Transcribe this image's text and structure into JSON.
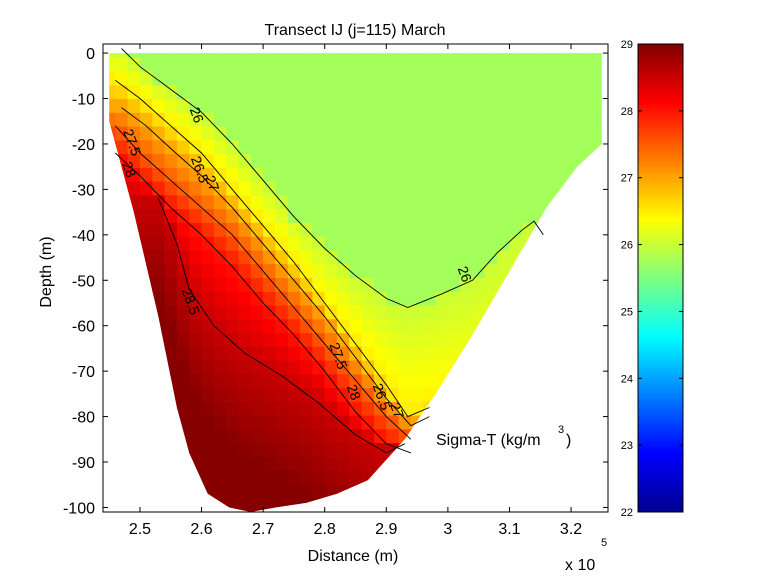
{
  "chart_data": {
    "type": "heatmap",
    "title": "Transect IJ  (j=115)  March",
    "xlabel": "Distance (m)",
    "ylabel": "Depth (m)",
    "x_multiplier_label": "x 10",
    "x_multiplier_exp": "5",
    "annotation": "Sigma-T (kg/m",
    "annotation_sup": "3",
    "annotation_tail": ")",
    "xlim": [
      2.44,
      3.26
    ],
    "ylim": [
      -101,
      2
    ],
    "xticks": [
      "2.5",
      "2.6",
      "2.7",
      "2.8",
      "2.9",
      "3",
      "3.1",
      "3.2"
    ],
    "xtick_values": [
      2.5,
      2.6,
      2.7,
      2.8,
      2.9,
      3.0,
      3.1,
      3.2
    ],
    "yticks": [
      "0",
      "-10",
      "-20",
      "-30",
      "-40",
      "-50",
      "-60",
      "-70",
      "-80",
      "-90",
      "-100"
    ],
    "ytick_values": [
      0,
      -10,
      -20,
      -30,
      -40,
      -50,
      -60,
      -70,
      -80,
      -90,
      -100
    ],
    "colorbar": {
      "clim": [
        22,
        29
      ],
      "ticks": [
        "22",
        "23",
        "24",
        "25",
        "26",
        "27",
        "28",
        "29"
      ],
      "tick_values": [
        22,
        23,
        24,
        25,
        26,
        27,
        28,
        29
      ],
      "colormap": "jet"
    },
    "bottom_profile": [
      [
        2.45,
        -15
      ],
      [
        2.49,
        -35
      ],
      [
        2.53,
        -58
      ],
      [
        2.56,
        -78
      ],
      [
        2.58,
        -88
      ],
      [
        2.61,
        -97
      ],
      [
        2.645,
        -100
      ],
      [
        2.68,
        -101
      ],
      [
        2.72,
        -100
      ],
      [
        2.77,
        -99
      ],
      [
        2.82,
        -97
      ],
      [
        2.87,
        -94
      ],
      [
        2.93,
        -85
      ],
      [
        2.98,
        -75
      ],
      [
        3.04,
        -62
      ],
      [
        3.1,
        -48
      ],
      [
        3.16,
        -34
      ],
      [
        3.21,
        -25
      ],
      [
        3.25,
        -20
      ],
      [
        3.25,
        0
      ],
      [
        2.45,
        0
      ]
    ],
    "contours": [
      {
        "level": "26",
        "points": [
          [
            2.47,
            1
          ],
          [
            2.5,
            -3
          ],
          [
            2.55,
            -8
          ],
          [
            2.6,
            -13
          ],
          [
            2.65,
            -20
          ],
          [
            2.7,
            -28
          ],
          [
            2.75,
            -36
          ],
          [
            2.8,
            -43
          ],
          [
            2.85,
            -49
          ],
          [
            2.9,
            -54
          ],
          [
            2.935,
            -56
          ],
          [
            2.99,
            -53
          ],
          [
            3.04,
            -50
          ],
          [
            3.08,
            -44
          ],
          [
            3.12,
            -39
          ],
          [
            3.14,
            -37
          ],
          [
            3.155,
            -40
          ]
        ],
        "labels": [
          {
            "text": "26",
            "x": 2.585,
            "y": -14
          },
          {
            "text": "26",
            "x": 3.02,
            "y": -49
          }
        ]
      },
      {
        "level": "26.5",
        "points": [
          [
            2.46,
            -6
          ],
          [
            2.5,
            -10
          ],
          [
            2.55,
            -16
          ],
          [
            2.6,
            -22
          ],
          [
            2.65,
            -30
          ],
          [
            2.7,
            -38
          ],
          [
            2.75,
            -46
          ],
          [
            2.8,
            -55
          ],
          [
            2.85,
            -64
          ],
          [
            2.9,
            -73
          ],
          [
            2.935,
            -80
          ],
          [
            2.97,
            -78
          ]
        ],
        "labels": [
          {
            "text": "26.5",
            "x": 2.59,
            "y": -26
          },
          {
            "text": "26.5",
            "x": 2.885,
            "y": -76
          }
        ]
      },
      {
        "level": "27",
        "points": [
          [
            2.47,
            -12
          ],
          [
            2.51,
            -16
          ],
          [
            2.55,
            -21
          ],
          [
            2.6,
            -27
          ],
          [
            2.65,
            -34
          ],
          [
            2.7,
            -42
          ],
          [
            2.75,
            -50
          ],
          [
            2.8,
            -58
          ],
          [
            2.85,
            -67
          ],
          [
            2.9,
            -76
          ],
          [
            2.94,
            -82
          ],
          [
            2.97,
            -80
          ]
        ],
        "labels": [
          {
            "text": "27",
            "x": 2.61,
            "y": -29
          },
          {
            "text": "27",
            "x": 2.91,
            "y": -79
          }
        ]
      },
      {
        "level": "27.5",
        "points": [
          [
            2.46,
            -16
          ],
          [
            2.5,
            -22
          ],
          [
            2.55,
            -28
          ],
          [
            2.6,
            -34
          ],
          [
            2.65,
            -40
          ],
          [
            2.7,
            -48
          ],
          [
            2.75,
            -56
          ],
          [
            2.8,
            -64
          ],
          [
            2.85,
            -72
          ],
          [
            2.9,
            -80
          ],
          [
            2.94,
            -85
          ]
        ],
        "labels": [
          {
            "text": "27.5",
            "x": 2.48,
            "y": -20
          },
          {
            "text": "27.5",
            "x": 2.815,
            "y": -67
          }
        ]
      },
      {
        "level": "28",
        "points": [
          [
            2.46,
            -22
          ],
          [
            2.5,
            -27
          ],
          [
            2.55,
            -34
          ],
          [
            2.6,
            -40
          ],
          [
            2.65,
            -47
          ],
          [
            2.7,
            -55
          ],
          [
            2.75,
            -62
          ],
          [
            2.8,
            -70
          ],
          [
            2.85,
            -79
          ],
          [
            2.9,
            -86
          ],
          [
            2.94,
            -88
          ]
        ],
        "labels": [
          {
            "text": "28",
            "x": 2.475,
            "y": -26
          },
          {
            "text": "28",
            "x": 2.84,
            "y": -75
          }
        ]
      },
      {
        "level": "28.5",
        "points": [
          [
            2.53,
            -32
          ],
          [
            2.56,
            -42
          ],
          [
            2.58,
            -52
          ],
          [
            2.62,
            -60
          ],
          [
            2.67,
            -66
          ],
          [
            2.73,
            -71
          ],
          [
            2.79,
            -77
          ],
          [
            2.85,
            -84
          ],
          [
            2.9,
            -88
          ],
          [
            2.93,
            -86
          ]
        ],
        "labels": [
          {
            "text": "28.5",
            "x": 2.575,
            "y": -55
          }
        ]
      }
    ]
  }
}
